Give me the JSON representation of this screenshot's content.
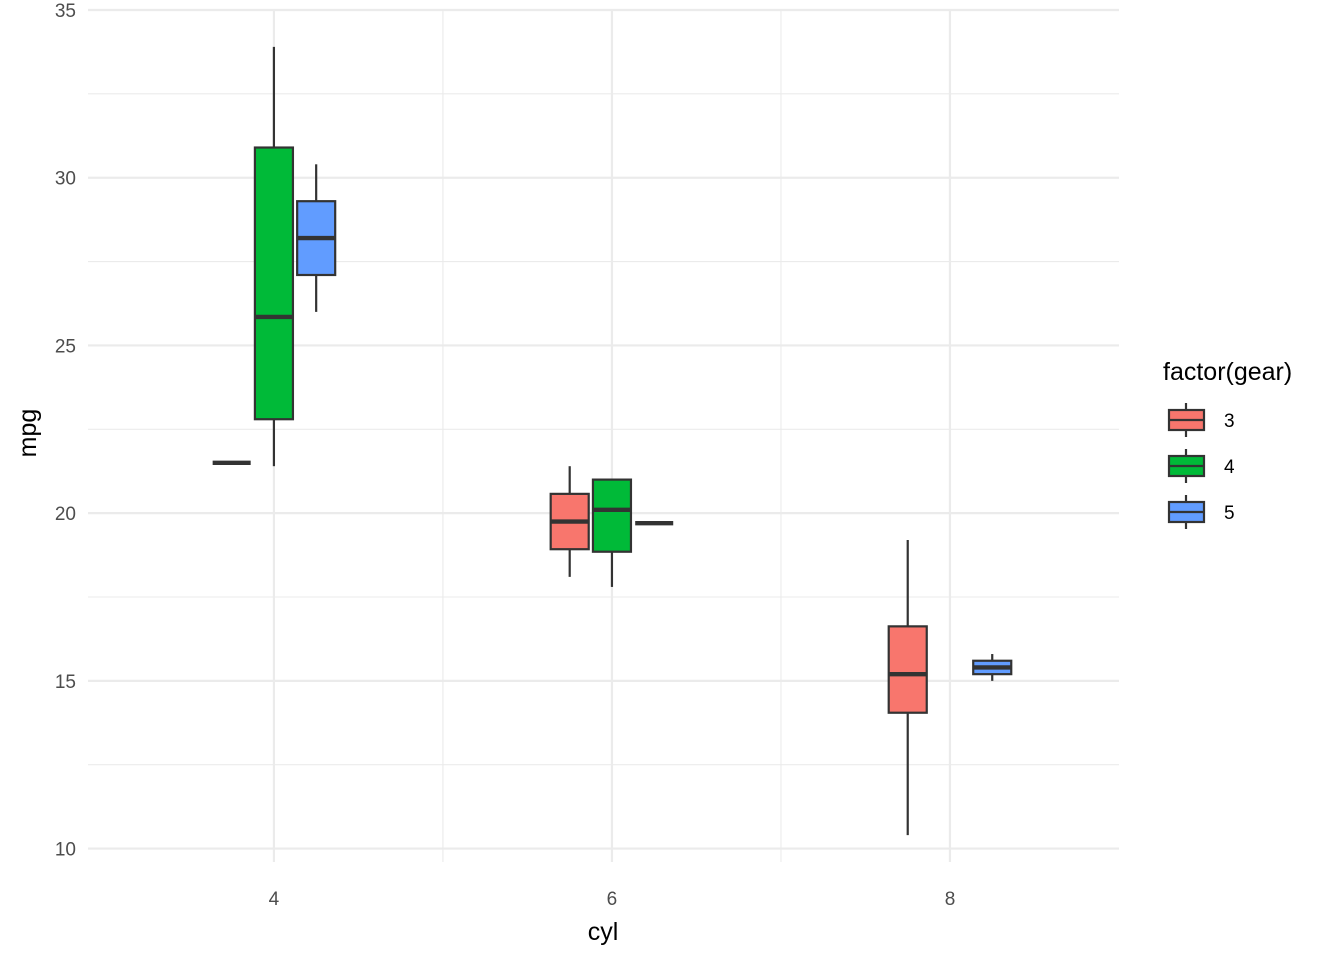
{
  "chart_data": {
    "type": "boxplot",
    "title": "",
    "xlabel": "cyl",
    "ylabel": "mpg",
    "x_ticks": [
      4,
      6,
      8
    ],
    "y_ticks": [
      10,
      15,
      20,
      25,
      30,
      35
    ],
    "xlim": [
      2.9,
      9.0
    ],
    "ylim": [
      9.6,
      35
    ],
    "grid": true,
    "legend": {
      "title": "factor(gear)",
      "placement": "right",
      "entries": [
        "3",
        "4",
        "5"
      ]
    },
    "colors": {
      "3": "#F8766D",
      "4": "#00BA38",
      "5": "#619CFF"
    },
    "group_order": [
      "3",
      "4",
      "5"
    ],
    "dodge_width": 0.75,
    "categories": [
      4,
      6,
      8
    ],
    "series": [
      {
        "name": "3",
        "boxes": [
          {
            "cyl": 4,
            "min": 21.5,
            "q1": 21.5,
            "median": 21.5,
            "q3": 21.5,
            "max": 21.5
          },
          {
            "cyl": 6,
            "min": 18.1,
            "q1": 18.925,
            "median": 19.75,
            "q3": 20.575,
            "max": 21.4
          },
          {
            "cyl": 8,
            "min": 10.4,
            "q1": 14.05,
            "median": 15.2,
            "q3": 16.625,
            "max": 19.2
          }
        ]
      },
      {
        "name": "4",
        "boxes": [
          {
            "cyl": 4,
            "min": 21.4,
            "q1": 22.8,
            "median": 25.85,
            "q3": 30.9,
            "max": 33.9
          },
          {
            "cyl": 6,
            "min": 17.8,
            "q1": 18.85,
            "median": 20.1,
            "q3": 21.0,
            "max": 21.0
          }
        ]
      },
      {
        "name": "5",
        "boxes": [
          {
            "cyl": 4,
            "min": 26.0,
            "q1": 27.1,
            "median": 28.2,
            "q3": 29.3,
            "max": 30.4
          },
          {
            "cyl": 6,
            "min": 19.7,
            "q1": 19.7,
            "median": 19.7,
            "q3": 19.7,
            "max": 19.7
          },
          {
            "cyl": 8,
            "min": 15.0,
            "q1": 15.2,
            "median": 15.4,
            "q3": 15.6,
            "max": 15.8
          }
        ]
      }
    ]
  }
}
